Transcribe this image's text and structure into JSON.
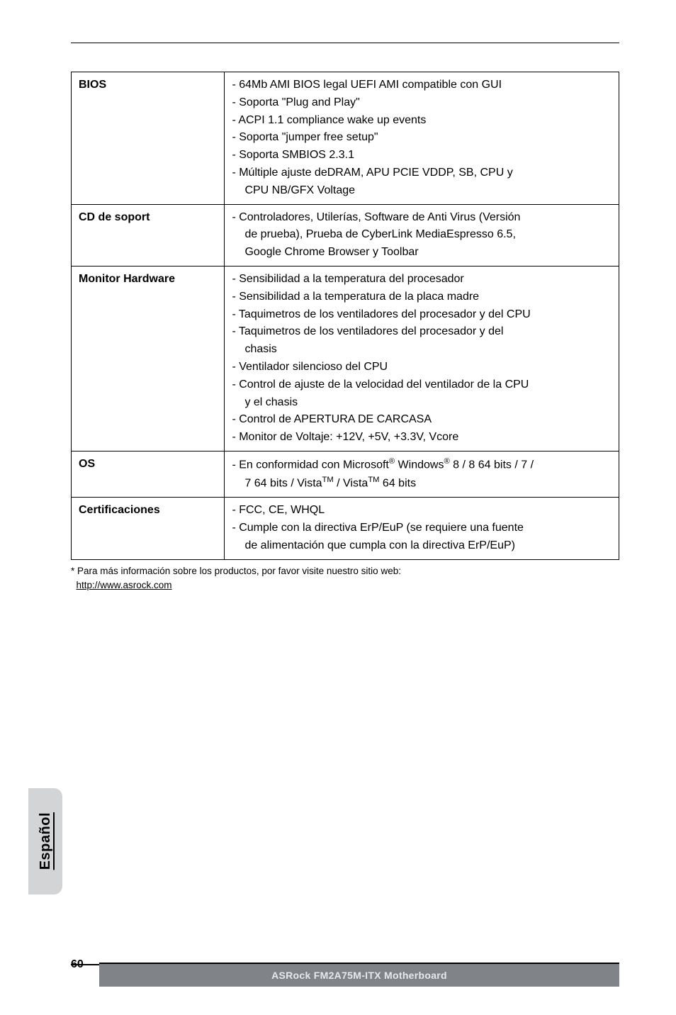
{
  "top_rule": true,
  "table": {
    "rows": [
      {
        "label": "BIOS",
        "lines": [
          "- 64Mb AMI BIOS legal UEFI AMI compatible con GUI",
          "- Soporta \"Plug and Play\"",
          "- ACPI 1.1 compliance wake up events",
          "- Soporta \"jumper free setup\"",
          "- Soporta SMBIOS 2.3.1",
          "- Múltiple ajuste deDRAM, APU PCIE VDDP, SB, CPU y",
          "  CPU NB/GFX Voltage"
        ]
      },
      {
        "label": "CD de soport",
        "lines": [
          "- Controladores, Utilerías, Software de Anti Virus (Versión",
          "  de prueba), Prueba de CyberLink MediaEspresso 6.5,",
          "  Google Chrome Browser y Toolbar"
        ]
      },
      {
        "label": "Monitor Hardware",
        "lines": [
          "- Sensibilidad a la temperatura del procesador",
          "- Sensibilidad a la temperatura de la placa madre",
          "- Taquimetros de los ventiladores del procesador y del CPU",
          "- Taquimetros de los ventiladores del procesador y del",
          "  chasis",
          "- Ventilador silencioso del CPU",
          "- Control de ajuste de la velocidad del ventilador de la CPU",
          "  y el chasis",
          "- Control de APERTURA DE CARCASA",
          "- Monitor de Voltaje: +12V, +5V, +3.3V, Vcore"
        ]
      },
      {
        "label": "OS",
        "lines_html": [
          "- En conformidad con Microsoft<sup>®</sup> Windows<sup>®</sup> 8 / 8 64 bits / 7 /",
          "  7 64 bits / Vista<sup>TM</sup> / Vista<sup>TM</sup> 64 bits"
        ]
      },
      {
        "label": "Certificaciones",
        "lines": [
          "- FCC, CE, WHQL",
          "- Cumple con la directiva ErP/EuP (se requiere una fuente",
          "  de alimentación que cumpla con la directiva ErP/EuP)"
        ]
      }
    ]
  },
  "footnote": {
    "text": "* Para más información sobre los productos, por favor visite nuestro sitio web:",
    "link_text": "http://www.asrock.com",
    "link_href": "http://www.asrock.com"
  },
  "side_tab": "Español",
  "page_number": "60",
  "footer_bar": "ASRock  FM2A75M-ITX  Motherboard",
  "colors": {
    "side_tab_bg": "#d2d4d6",
    "footer_bg": "#808489",
    "footer_text": "#e7e8ea"
  }
}
